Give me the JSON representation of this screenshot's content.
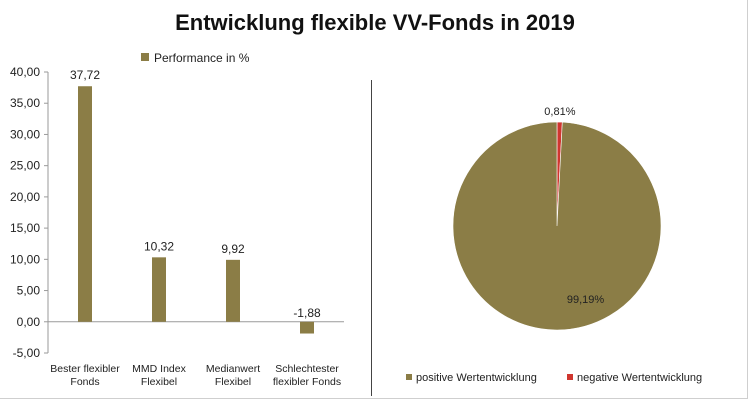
{
  "title": "Entwicklung flexible VV-Fonds in 2019",
  "colors": {
    "bar": "#8b7d46",
    "pie_positive": "#8b7d46",
    "pie_negative": "#d0362f"
  },
  "chart_data": [
    {
      "type": "bar",
      "legend": {
        "label": "Performance in %",
        "placement": "top"
      },
      "categories": [
        "Bester flexibler Fonds",
        "MMD Index Flexibel",
        "Medianwert Flexibel",
        "Schlechtester flexibler Fonds"
      ],
      "category_lines": [
        [
          "Bester flexibler",
          "Fonds"
        ],
        [
          "MMD Index",
          "Flexibel"
        ],
        [
          "Medianwert",
          "Flexibel"
        ],
        [
          "Schlechtester",
          "flexibler Fonds"
        ]
      ],
      "series": [
        {
          "name": "Performance in %",
          "values": [
            37.72,
            10.32,
            9.92,
            -1.88
          ]
        }
      ],
      "data_labels": [
        "37,72",
        "10,32",
        "9,92",
        "-1,88"
      ],
      "ylim": [
        -5,
        40
      ],
      "yticks": [
        40,
        35,
        30,
        25,
        20,
        15,
        10,
        5,
        0,
        -5
      ],
      "ytick_labels": [
        "40,00",
        "35,00",
        "30,00",
        "25,00",
        "20,00",
        "15,00",
        "10,00",
        "5,00",
        "0,00",
        "-5,00"
      ],
      "grid": false
    },
    {
      "type": "pie",
      "slices": [
        {
          "label": "positive Wertentwicklung",
          "value": 99.19,
          "display": "99,19%"
        },
        {
          "label": "negative Wertentwicklung",
          "value": 0.81,
          "display": "0,81%"
        }
      ],
      "legend": {
        "placement": "bottom"
      }
    }
  ]
}
